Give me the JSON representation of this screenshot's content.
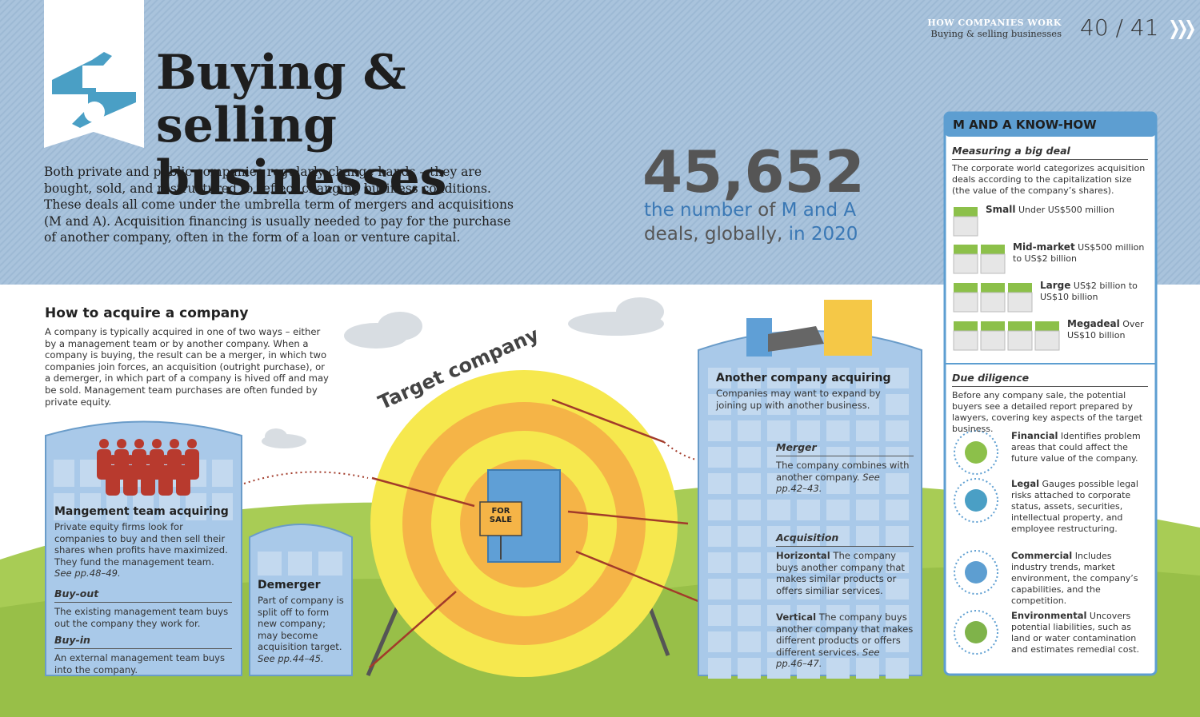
{
  "header": {
    "section": "HOW COMPANIES WORK",
    "subsection": "Buying & selling businesses",
    "pages": "40 / 41"
  },
  "title": "Buying & selling businesses",
  "intro": "Both private and public companies regularly change hands – they are bought, sold, and restructured to reflect changing business conditions. These deals all come under the umbrella term of mergers and acquisitions (M and A). Acquisition financing is usually needed to pay for the purchase of another company, often in the form of a loan or venture capital.",
  "stat": {
    "number": "45,652",
    "caption": [
      {
        "text": "the number",
        "color": "#3a78b5"
      },
      {
        "text": " of ",
        "color": "#555555"
      },
      {
        "text": "M and A",
        "color": "#3a78b5"
      },
      {
        "text": " deals, globally, ",
        "color": "#555555"
      },
      {
        "text": "in 2020",
        "color": "#3a78b5"
      }
    ]
  },
  "how_to": {
    "heading": "How to acquire a company",
    "text": "A company is typically acquired in one of two ways – either by a management team or by another company. When a company is buying, the result can be a merger, in which two companies join forces, an acquisition (outright purchase), or a demerger, in which part of a company is hived off and may be sold. Management team purchases are often funded by private equity."
  },
  "target": {
    "label": "Target company",
    "sign": "FOR SALE"
  },
  "management": {
    "heading": "Mangement team acquiring",
    "text": "Private equity firms look for companies to buy and then sell their shares when profits have maximized. They fund the management team. ",
    "ref": "See pp.48–49.",
    "buy_out": {
      "term": "Buy-out",
      "text": "The existing management team buys out the company they work for."
    },
    "buy_in": {
      "term": "Buy-in",
      "text": "An external management team buys into the company."
    }
  },
  "demerger": {
    "heading": "Demerger",
    "text": "Part of company is split off to form new company; may become acquisition target. ",
    "ref": "See pp.44–45."
  },
  "another": {
    "heading": "Another company acquiring",
    "text": "Companies may want to expand by joining up with another business.",
    "merger": {
      "term": "Merger",
      "text": "The company combines with another company. ",
      "ref": "See pp.42–43."
    },
    "acquisition": "Acquisition",
    "horizontal": {
      "term": "Horizontal",
      "text": " The company buys another company that makes similar products or offers similiar services."
    },
    "vertical": {
      "term": "Vertical",
      "text": " The company buys another company that makes different products or offers different services. ",
      "ref": "See pp.46–47."
    }
  },
  "sidebar": {
    "title": "M AND A KNOW-HOW",
    "measuring": {
      "heading": "Measuring a big deal",
      "text": "The corporate world categorizes acquisition deals according to the capitalization size (the value of the company’s shares).",
      "tiers": [
        {
          "name": "Small",
          "text": " Under US$500 million"
        },
        {
          "name": "Mid-market",
          "text": " US$500 million to US$2 billion"
        },
        {
          "name": "Large",
          "text": " US$2 billion to US$10 billion"
        },
        {
          "name": "Megadeal",
          "text": " Over US$10 billion"
        }
      ]
    },
    "due_diligence": {
      "heading": "Due diligence",
      "text": "Before any company sale, the potential buyers see a detailed report prepared by lawyers, covering key aspects of the target business.",
      "items": [
        {
          "name": "Financial",
          "text": " Identifies problem areas that could affect the future value of the company."
        },
        {
          "name": "Legal",
          "text": " Gauges possible legal risks attached to corporate status, assets, securities, intellectual property, and employee restructuring."
        },
        {
          "name": "Commercial",
          "text": " Includes industry trends, market environment, the company’s capabilities, and the competition."
        },
        {
          "name": "Environmental",
          "text": " Uncovers potential liabilities, such as land or water contamination and estimates remedial cost."
        }
      ]
    }
  }
}
